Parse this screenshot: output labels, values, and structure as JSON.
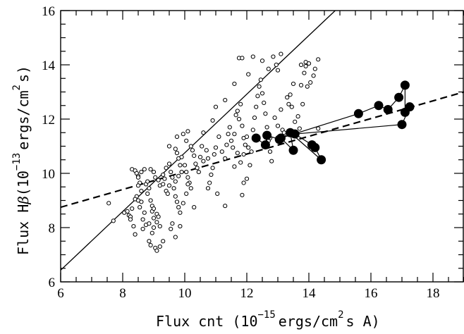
{
  "chart_data": {
    "type": "scatter",
    "xlabel": {
      "pre": "Flux cnt (10",
      "exp": "−15",
      "mid": "ergs/cm",
      "sup2": "2",
      "post": "s A)"
    },
    "ylabel": {
      "pre": "Flux H",
      "beta": "β",
      "open": "(10",
      "exp": "−13",
      "mid": "ergs/cm",
      "sup2": "2",
      "post": "s)"
    },
    "xlim": [
      6,
      19
    ],
    "ylim": [
      6,
      16
    ],
    "x_ticks": [
      6,
      8,
      10,
      12,
      14,
      16,
      18
    ],
    "y_ticks": [
      6,
      8,
      10,
      12,
      14,
      16
    ],
    "grid": false,
    "series": [
      {
        "marker": "open-circle",
        "connected": false,
        "points": [
          [
            7.55,
            8.9
          ],
          [
            7.7,
            8.25
          ],
          [
            8.05,
            8.55
          ],
          [
            8.15,
            8.6
          ],
          [
            8.2,
            8.45
          ],
          [
            8.25,
            8.4
          ],
          [
            8.3,
            8.7
          ],
          [
            8.25,
            8.3
          ],
          [
            8.35,
            8.05
          ],
          [
            8.4,
            7.75
          ],
          [
            8.3,
            10.15
          ],
          [
            8.4,
            10.1
          ],
          [
            8.45,
            10.0
          ],
          [
            8.5,
            9.9
          ],
          [
            8.5,
            9.85
          ],
          [
            8.55,
            9.65
          ],
          [
            8.5,
            9.55
          ],
          [
            8.6,
            9.35
          ],
          [
            8.45,
            9.15
          ],
          [
            8.4,
            9.05
          ],
          [
            8.5,
            9.0
          ],
          [
            8.6,
            8.95
          ],
          [
            8.55,
            8.75
          ],
          [
            8.7,
            8.55
          ],
          [
            8.65,
            8.3
          ],
          [
            8.75,
            8.1
          ],
          [
            8.65,
            7.95
          ],
          [
            8.6,
            10.05
          ],
          [
            8.7,
            10.15
          ],
          [
            8.75,
            9.6
          ],
          [
            8.8,
            9.7
          ],
          [
            8.85,
            9.45
          ],
          [
            8.8,
            9.25
          ],
          [
            8.9,
            9.0
          ],
          [
            8.95,
            8.8
          ],
          [
            8.95,
            8.6
          ],
          [
            9.0,
            8.35
          ],
          [
            8.85,
            8.15
          ],
          [
            9.0,
            8.0
          ],
          [
            8.95,
            7.8
          ],
          [
            8.85,
            7.5
          ],
          [
            8.9,
            7.35
          ],
          [
            9.05,
            7.25
          ],
          [
            9.1,
            7.15
          ],
          [
            9.2,
            7.3
          ],
          [
            9.0,
            8.7
          ],
          [
            9.1,
            8.5
          ],
          [
            9.1,
            8.2
          ],
          [
            9.15,
            8.4
          ],
          [
            9.2,
            8.05
          ],
          [
            8.9,
            10.15
          ],
          [
            9.0,
            10.05
          ],
          [
            9.05,
            9.85
          ],
          [
            9.15,
            9.75
          ],
          [
            9.2,
            9.55
          ],
          [
            9.3,
            9.6
          ],
          [
            9.35,
            9.8
          ],
          [
            9.4,
            9.35
          ],
          [
            9.45,
            9.25
          ],
          [
            9.5,
            9.55
          ],
          [
            9.3,
            9.95
          ],
          [
            9.4,
            10.2
          ],
          [
            9.5,
            10.35
          ],
          [
            9.55,
            10.05
          ],
          [
            9.6,
            9.85
          ],
          [
            9.65,
            9.45
          ],
          [
            9.7,
            9.15
          ],
          [
            9.75,
            8.95
          ],
          [
            9.8,
            8.75
          ],
          [
            9.85,
            8.55
          ],
          [
            9.7,
            9.7
          ],
          [
            9.8,
            9.9
          ],
          [
            9.9,
            10.05
          ],
          [
            9.85,
            10.3
          ],
          [
            9.8,
            10.55
          ],
          [
            9.75,
            10.75
          ],
          [
            9.7,
            10.9
          ],
          [
            9.9,
            10.6
          ],
          [
            10.0,
            10.3
          ],
          [
            10.05,
            10.05
          ],
          [
            10.1,
            9.85
          ],
          [
            10.15,
            9.65
          ],
          [
            10.2,
            9.45
          ],
          [
            10.05,
            9.25
          ],
          [
            10.1,
            9.6
          ],
          [
            9.5,
            11.0
          ],
          [
            9.75,
            11.35
          ],
          [
            9.95,
            11.45
          ],
          [
            10.05,
            11.2
          ],
          [
            10.1,
            11.55
          ],
          [
            10.2,
            11.0
          ],
          [
            10.3,
            10.65
          ],
          [
            10.35,
            10.35
          ],
          [
            10.4,
            10.2
          ],
          [
            10.45,
            10.05
          ],
          [
            10.5,
            10.6
          ],
          [
            10.55,
            11.0
          ],
          [
            10.6,
            10.45
          ],
          [
            10.7,
            10.85
          ],
          [
            10.75,
            10.55
          ],
          [
            10.8,
            9.65
          ],
          [
            10.85,
            9.95
          ],
          [
            10.9,
            10.2
          ],
          [
            10.95,
            10.7
          ],
          [
            11.0,
            10.95
          ],
          [
            10.75,
            9.45
          ],
          [
            11.05,
            9.25
          ],
          [
            9.95,
            8.9
          ],
          [
            10.3,
            8.75
          ],
          [
            9.55,
            7.95
          ],
          [
            9.6,
            8.15
          ],
          [
            9.85,
            8.05
          ],
          [
            9.7,
            7.65
          ],
          [
            9.3,
            7.5
          ],
          [
            11.1,
            11.35
          ],
          [
            11.2,
            10.8
          ],
          [
            11.3,
            10.55
          ],
          [
            11.35,
            11.05
          ],
          [
            11.4,
            11.45
          ],
          [
            11.45,
            11.7
          ],
          [
            11.5,
            11.2
          ],
          [
            11.55,
            10.95
          ],
          [
            11.6,
            11.45
          ],
          [
            11.65,
            12.15
          ],
          [
            11.7,
            12.3
          ],
          [
            11.75,
            12.0
          ],
          [
            11.8,
            12.55
          ],
          [
            11.85,
            11.75
          ],
          [
            11.9,
            11.3
          ],
          [
            11.95,
            11.05
          ],
          [
            11.6,
            10.25
          ],
          [
            11.7,
            10.75
          ],
          [
            11.8,
            10.4
          ],
          [
            11.9,
            10.7
          ],
          [
            12.0,
            11.35
          ],
          [
            12.05,
            10.95
          ],
          [
            11.3,
            8.8
          ],
          [
            11.85,
            9.2
          ],
          [
            11.9,
            9.65
          ],
          [
            12.0,
            9.8
          ],
          [
            12.1,
            10.3
          ],
          [
            12.15,
            10.8
          ],
          [
            12.2,
            11.6
          ],
          [
            12.25,
            12.05
          ],
          [
            12.3,
            12.45
          ],
          [
            12.35,
            12.85
          ],
          [
            12.4,
            13.2
          ],
          [
            12.45,
            13.45
          ],
          [
            12.5,
            12.95
          ],
          [
            12.55,
            12.6
          ],
          [
            12.6,
            12.2
          ],
          [
            12.65,
            11.7
          ],
          [
            12.7,
            11.2
          ],
          [
            12.75,
            10.8
          ],
          [
            12.8,
            10.45
          ],
          [
            12.9,
            12.05
          ],
          [
            13.0,
            11.75
          ],
          [
            13.05,
            11.25
          ],
          [
            13.1,
            12.35
          ],
          [
            13.15,
            11.6
          ],
          [
            13.2,
            11.5
          ],
          [
            13.3,
            12.8
          ],
          [
            13.35,
            12.55
          ],
          [
            13.4,
            12.9
          ],
          [
            13.45,
            12.45
          ],
          [
            13.5,
            13.3
          ],
          [
            13.55,
            11.9
          ],
          [
            13.65,
            12.1
          ],
          [
            13.7,
            11.65
          ],
          [
            13.75,
            13.25
          ],
          [
            13.8,
            12.55
          ],
          [
            13.85,
            13.7
          ],
          [
            13.9,
            14.1
          ],
          [
            13.95,
            13.2
          ],
          [
            14.0,
            14.05
          ],
          [
            14.05,
            13.35
          ],
          [
            14.15,
            13.6
          ],
          [
            14.2,
            13.85
          ],
          [
            14.3,
            14.2
          ],
          [
            14.3,
            11.65
          ],
          [
            12.7,
            13.85
          ],
          [
            13.0,
            13.8
          ],
          [
            13.1,
            14.4
          ],
          [
            12.95,
            14.0
          ],
          [
            12.85,
            14.3
          ],
          [
            12.2,
            14.3
          ],
          [
            12.05,
            13.65
          ],
          [
            11.75,
            14.25
          ],
          [
            11.85,
            14.25
          ],
          [
            12.5,
            14.15
          ],
          [
            13.9,
            13.95
          ],
          [
            13.75,
            14.0
          ],
          [
            11.6,
            13.3
          ],
          [
            11.3,
            12.7
          ],
          [
            11.0,
            12.45
          ],
          [
            10.9,
            11.95
          ],
          [
            10.6,
            11.5
          ],
          [
            10.25,
            10.85
          ],
          [
            12.6,
            11.45
          ],
          [
            12.75,
            11.3
          ]
        ]
      },
      {
        "marker": "filled-circle",
        "connected": true,
        "points": [
          [
            12.3,
            11.3
          ],
          [
            12.6,
            11.05
          ],
          [
            12.65,
            11.4
          ],
          [
            13.05,
            11.25
          ],
          [
            13.4,
            11.5
          ],
          [
            13.55,
            11.45
          ],
          [
            14.1,
            11.05
          ],
          [
            14.2,
            10.95
          ],
          [
            14.4,
            10.5
          ],
          [
            13.5,
            10.85
          ],
          [
            13.1,
            11.3
          ],
          [
            15.6,
            12.2
          ],
          [
            16.25,
            12.5
          ],
          [
            16.55,
            12.35
          ],
          [
            16.9,
            12.8
          ],
          [
            17.1,
            13.25
          ],
          [
            17.1,
            12.25
          ],
          [
            17.25,
            12.45
          ],
          [
            17.0,
            11.8
          ]
        ],
        "path_order": [
          0,
          1,
          2,
          3,
          4,
          5,
          6,
          7,
          8,
          4,
          9,
          10,
          11,
          12,
          13,
          14,
          15,
          16,
          17,
          18,
          5
        ]
      }
    ],
    "fit_lines": [
      {
        "style": "solid",
        "points": [
          [
            6,
            6.43
          ],
          [
            14.85,
            16
          ]
        ]
      },
      {
        "style": "dashed",
        "points": [
          [
            6,
            8.75
          ],
          [
            19,
            13.0
          ]
        ]
      }
    ]
  }
}
